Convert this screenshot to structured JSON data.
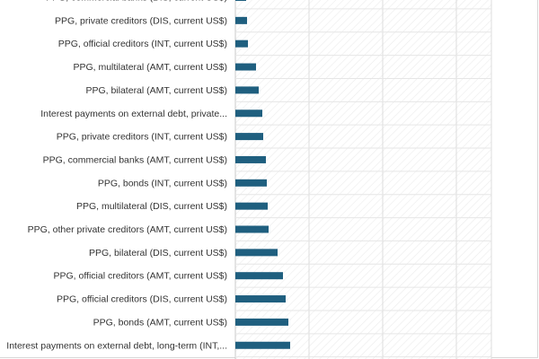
{
  "chart_data": {
    "type": "bar",
    "orientation": "horizontal",
    "categories": [
      "PPG, commercial banks (DIS, current US$)",
      "PPG, private creditors (DIS, current US$)",
      "PPG, official creditors (INT, current US$)",
      "PPG, multilateral (AMT, current US$)",
      "PPG, bilateral (AMT, current US$)",
      "Interest payments on external debt, private...",
      "PPG, private creditors (INT, current US$)",
      "PPG, commercial banks (AMT, current US$)",
      "PPG, bonds (INT, current US$)",
      "PPG, multilateral (DIS, current US$)",
      "PPG, other private creditors (AMT, current US$)",
      "PPG, bilateral (DIS, current US$)",
      "PPG, official creditors (AMT, current US$)",
      "PPG, official creditors (DIS, current US$)",
      "PPG, bonds (AMT, current US$)",
      "Interest payments on external debt, long-term (INT,..."
    ],
    "values": [
      12,
      13,
      14,
      23,
      26,
      30,
      31,
      34,
      35,
      36,
      37,
      47,
      53,
      56,
      59,
      61
    ],
    "xlim": [
      0,
      285
    ],
    "grid": true,
    "bar_color": "#1f5f7f",
    "plot_background": "hatched-light-gray"
  }
}
